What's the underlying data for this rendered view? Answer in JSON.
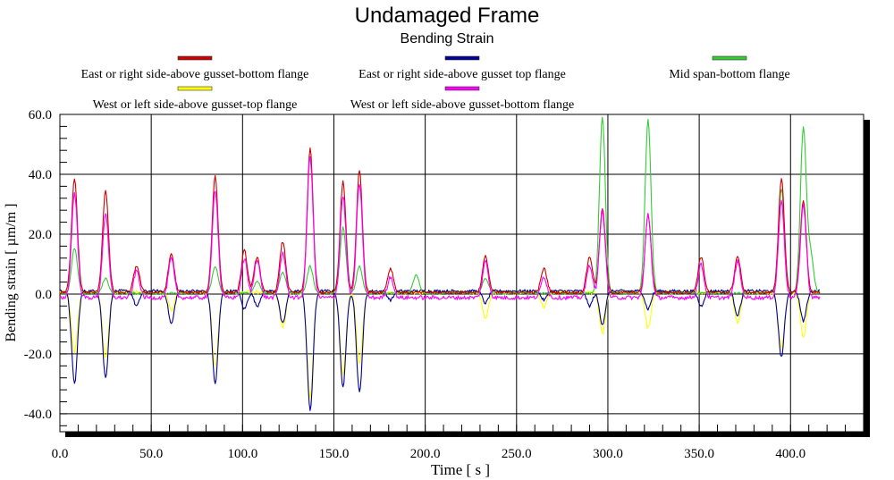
{
  "chart_data": {
    "type": "line",
    "title": "Undamaged Frame",
    "subtitle": "Bending Strain",
    "xlabel": "Time [ s ]",
    "ylabel": "Bending strain [ µm/m ]",
    "xlim": [
      0,
      440
    ],
    "ylim": [
      -46,
      60
    ],
    "xticks": [
      "0.0",
      "50.0",
      "100.0",
      "150.0",
      "200.0",
      "250.0",
      "300.0",
      "350.0",
      "400.0"
    ],
    "yticks": [
      "60.0",
      "40.0",
      "20.0",
      "0.0",
      "-20.0",
      "-40.0"
    ],
    "grid": true,
    "legend_position": "top",
    "series": [
      {
        "name": "East or right side-above gusset-bottom flange",
        "color": "#cc0000",
        "peaks": [
          [
            8,
            38
          ],
          [
            25,
            34
          ],
          [
            42,
            9
          ],
          [
            61,
            13
          ],
          [
            85,
            39
          ],
          [
            101,
            14
          ],
          [
            108,
            12
          ],
          [
            122,
            17
          ],
          [
            137,
            48
          ],
          [
            155,
            37
          ],
          [
            164,
            41
          ],
          [
            181,
            8
          ],
          [
            233,
            12
          ],
          [
            265,
            8
          ],
          [
            290,
            12
          ],
          [
            297,
            28
          ],
          [
            322,
            26
          ],
          [
            351,
            12
          ],
          [
            371,
            12
          ],
          [
            395,
            38
          ],
          [
            407,
            31
          ]
        ]
      },
      {
        "name": "East or right side-above gusset top flange",
        "color": "#000099",
        "peaks": [
          [
            8,
            -31
          ],
          [
            25,
            -29
          ],
          [
            42,
            -5
          ],
          [
            61,
            -11
          ],
          [
            85,
            -31
          ],
          [
            101,
            -6
          ],
          [
            108,
            -5
          ],
          [
            122,
            -11
          ],
          [
            137,
            -40
          ],
          [
            155,
            -32
          ],
          [
            164,
            -34
          ],
          [
            181,
            -3
          ],
          [
            233,
            -4
          ],
          [
            265,
            -3
          ],
          [
            290,
            -5
          ],
          [
            297,
            -11
          ],
          [
            322,
            -6
          ],
          [
            351,
            -5
          ],
          [
            371,
            -8
          ],
          [
            395,
            -22
          ],
          [
            407,
            -10
          ]
        ]
      },
      {
        "name": "Mid span-bottom flange",
        "color": "#33cc33",
        "peaks": [
          [
            8,
            15
          ],
          [
            25,
            5
          ],
          [
            85,
            9
          ],
          [
            108,
            4
          ],
          [
            122,
            7
          ],
          [
            137,
            9
          ],
          [
            155,
            22
          ],
          [
            164,
            9
          ],
          [
            195,
            6
          ],
          [
            233,
            5
          ],
          [
            297,
            59
          ],
          [
            322,
            58
          ],
          [
            395,
            35
          ],
          [
            407,
            55
          ],
          [
            411,
            13
          ]
        ]
      },
      {
        "name": "West or left side-above gusset-top flange",
        "color": "#ffff00",
        "peaks": [
          [
            8,
            -20
          ],
          [
            25,
            -22
          ],
          [
            61,
            -6
          ],
          [
            85,
            -25
          ],
          [
            122,
            -12
          ],
          [
            137,
            -35
          ],
          [
            155,
            -27
          ],
          [
            164,
            -24
          ],
          [
            233,
            -9
          ],
          [
            265,
            -5
          ],
          [
            297,
            -14
          ],
          [
            322,
            -12
          ],
          [
            371,
            -10
          ],
          [
            395,
            -19
          ],
          [
            407,
            -15
          ]
        ]
      },
      {
        "name": "West or left side-above gusset-bottom flange",
        "color": "#ff00ff",
        "peaks": [
          [
            8,
            35
          ],
          [
            25,
            28
          ],
          [
            42,
            9
          ],
          [
            61,
            13
          ],
          [
            85,
            36
          ],
          [
            101,
            13
          ],
          [
            108,
            13
          ],
          [
            122,
            15
          ],
          [
            137,
            47
          ],
          [
            155,
            34
          ],
          [
            164,
            38
          ],
          [
            181,
            7
          ],
          [
            233,
            12
          ],
          [
            265,
            7
          ],
          [
            290,
            11
          ],
          [
            297,
            29
          ],
          [
            322,
            28
          ],
          [
            351,
            11
          ],
          [
            371,
            12
          ],
          [
            395,
            32
          ],
          [
            407,
            31
          ]
        ]
      }
    ]
  }
}
